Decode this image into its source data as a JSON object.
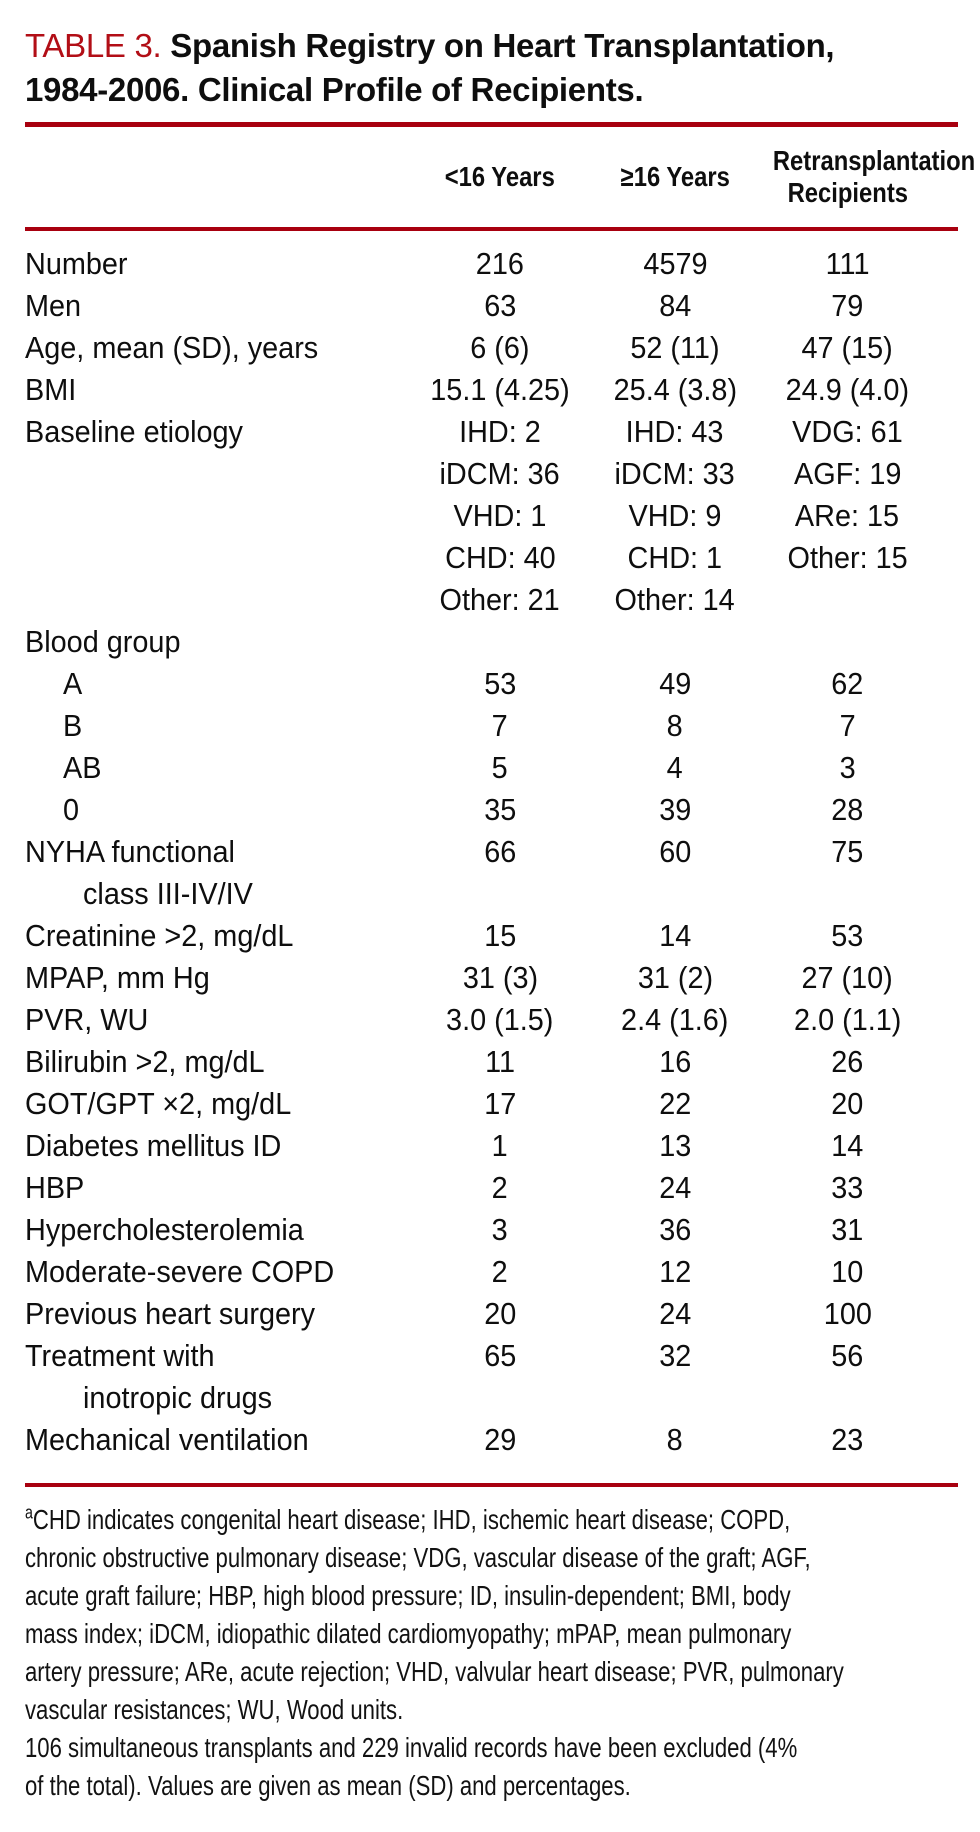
{
  "title": {
    "label": "TABLE 3.",
    "line1": "Spanish Registry on Heart Transplantation,",
    "line2": "1984-2006. Clinical Profile of Recipients."
  },
  "columns": [
    "<16 Years",
    "≥16 Years",
    {
      "line1": "Retransplantation",
      "line2": "Recipients"
    }
  ],
  "table": {
    "rows": [
      {
        "label": "Number",
        "indent": 0,
        "c": [
          "216",
          "4579",
          "111"
        ]
      },
      {
        "label": "Men",
        "indent": 0,
        "c": [
          "63",
          "84",
          "79"
        ]
      },
      {
        "label": "Age, mean (SD), years",
        "indent": 0,
        "c": [
          "6 (6)",
          "52 (11)",
          "47 (15)"
        ]
      },
      {
        "label": "BMI",
        "indent": 0,
        "c": [
          "15.1 (4.25)",
          "25.4 (3.8)",
          "24.9 (4.0)"
        ]
      },
      {
        "label": "Baseline etiology",
        "indent": 0,
        "c": [
          "IHD: 2",
          "IHD: 43",
          "VDG: 61"
        ]
      },
      {
        "label": "",
        "indent": 0,
        "c": [
          "iDCM: 36",
          "iDCM: 33",
          "AGF: 19"
        ]
      },
      {
        "label": "",
        "indent": 0,
        "c": [
          "VHD: 1",
          "VHD: 9",
          "ARe: 15"
        ]
      },
      {
        "label": "",
        "indent": 0,
        "c": [
          "CHD: 40",
          "CHD: 1",
          "Other: 15"
        ]
      },
      {
        "label": "",
        "indent": 0,
        "c": [
          "Other: 21",
          "Other: 14",
          ""
        ]
      },
      {
        "label": "Blood group",
        "indent": 0,
        "c": [
          "",
          "",
          ""
        ]
      },
      {
        "label": "A",
        "indent": 1,
        "c": [
          "53",
          "49",
          "62"
        ]
      },
      {
        "label": "B",
        "indent": 1,
        "c": [
          "7",
          "8",
          "7"
        ]
      },
      {
        "label": "AB",
        "indent": 1,
        "c": [
          "5",
          "4",
          "3"
        ]
      },
      {
        "label": "0",
        "indent": 1,
        "c": [
          "35",
          "39",
          "28"
        ]
      },
      {
        "label": "NYHA functional",
        "indent": 0,
        "c": [
          "66",
          "60",
          "75"
        ]
      },
      {
        "label": "class III-IV/IV",
        "indent": 2,
        "c": [
          "",
          "",
          ""
        ]
      },
      {
        "label": "Creatinine >2, mg/dL",
        "indent": 0,
        "c": [
          "15",
          "14",
          "53"
        ]
      },
      {
        "label": "MPAP, mm Hg",
        "indent": 0,
        "c": [
          "31 (3)",
          "31 (2)",
          "27 (10)"
        ]
      },
      {
        "label": "PVR, WU",
        "indent": 0,
        "c": [
          "3.0 (1.5)",
          "2.4 (1.6)",
          "2.0 (1.1)"
        ]
      },
      {
        "label": "Bilirubin >2, mg/dL",
        "indent": 0,
        "c": [
          "11",
          "16",
          "26"
        ]
      },
      {
        "label": "GOT/GPT ×2, mg/dL",
        "indent": 0,
        "c": [
          "17",
          "22",
          "20"
        ]
      },
      {
        "label": "Diabetes mellitus ID",
        "indent": 0,
        "c": [
          "1",
          "13",
          "14"
        ]
      },
      {
        "label": "HBP",
        "indent": 0,
        "c": [
          "2",
          "24",
          "33"
        ]
      },
      {
        "label": "Hypercholesterolemia",
        "indent": 0,
        "c": [
          "3",
          "36",
          "31"
        ]
      },
      {
        "label": "Moderate-severe COPD",
        "indent": 0,
        "c": [
          "2",
          "12",
          "10"
        ]
      },
      {
        "label": "Previous heart surgery",
        "indent": 0,
        "c": [
          "20",
          "24",
          "100"
        ]
      },
      {
        "label": "Treatment with",
        "indent": 0,
        "c": [
          "65",
          "32",
          "56"
        ]
      },
      {
        "label": "inotropic drugs",
        "indent": 2,
        "c": [
          "",
          "",
          ""
        ]
      },
      {
        "label": "Mechanical ventilation",
        "indent": 0,
        "c": [
          "29",
          "8",
          "23"
        ]
      }
    ]
  },
  "footnote": {
    "sup": "a",
    "line1": "CHD indicates congenital heart disease; IHD, ischemic heart disease; COPD,",
    "line2": "chronic obstructive pulmonary disease; VDG, vascular disease of the graft; AGF,",
    "line3": "acute graft failure; HBP, high blood pressure; ID, insulin-dependent; BMI, body",
    "line4": "mass index; iDCM, idiopathic dilated cardiomyopathy; mPAP, mean pulmonary",
    "line5": "artery pressure; ARe, acute rejection; VHD, valvular heart disease; PVR, pulmonary",
    "line6": "vascular resistances; WU, Wood units.",
    "line7": "106 simultaneous transplants and 229 invalid records have been excluded (4%",
    "line8": "of the total). Values are given as mean (SD) and percentages."
  },
  "colors": {
    "title_red": "#b20e16",
    "rule_red": "#a8000f"
  }
}
